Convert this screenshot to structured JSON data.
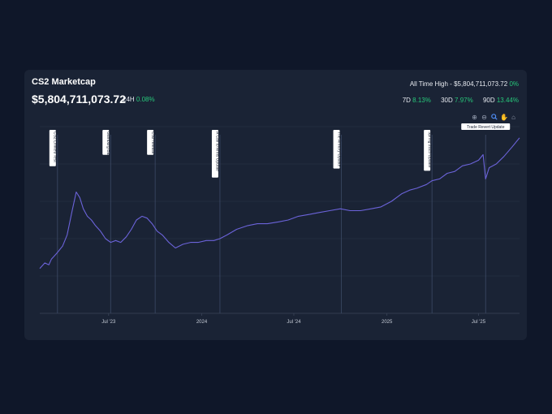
{
  "header": {
    "title": "CS2 Marketcap",
    "value": "$5,804,711,073.72",
    "change_24h_label": "24H",
    "change_24h": "0.08%",
    "ath_label": "All Time High - $5,804,711,073.72",
    "ath_change": "0%",
    "periods": [
      {
        "label": "7D",
        "value": "8.13%"
      },
      {
        "label": "30D",
        "value": "7.97%"
      },
      {
        "label": "90D",
        "value": "13.44%"
      }
    ]
  },
  "toolbar": {
    "icons": [
      "zoom-in-icon",
      "zoom-out-icon",
      "magnifier-icon",
      "pan-hand-icon",
      "home-icon"
    ]
  },
  "colors": {
    "background": "#0f1729",
    "card": "#1a2335",
    "line": "#6b63d9",
    "positive": "#27c77a",
    "grid": "#2c3648"
  },
  "chart_data": {
    "type": "line",
    "title": "",
    "xlabel": "",
    "ylabel": "",
    "x_ticks": [
      "Jul '23",
      "2024",
      "Jul '24",
      "2025",
      "Jul '25"
    ],
    "x_range": [
      "2023-02-15",
      "2025-09-20"
    ],
    "y_range": [
      0,
      1
    ],
    "grid": true,
    "annotations": [
      {
        "label": "CS2 Limited Test",
        "date": "2023-03-22"
      },
      {
        "label": "Gamburg Ban",
        "date": "2023-07-05"
      },
      {
        "label": "CS2 release",
        "date": "2023-10-01"
      },
      {
        "label": "A Call to Arms Update",
        "date": "2024-02-06"
      },
      {
        "label": "The Armory Update",
        "date": "2024-10-03"
      },
      {
        "label": "Spring 2025 Update",
        "date": "2025-03-31"
      },
      {
        "label": "Trade Revert Update",
        "date": "2025-07-15"
      }
    ],
    "series": [
      {
        "x": [
          "2023-02-15",
          "2023-02-25",
          "2023-03-05",
          "2023-03-10",
          "2023-03-20",
          "2023-04-01",
          "2023-04-10",
          "2023-04-20",
          "2023-04-28",
          "2023-05-05",
          "2023-05-12",
          "2023-05-20",
          "2023-05-28",
          "2023-06-05",
          "2023-06-15",
          "2023-06-25",
          "2023-07-05",
          "2023-07-15",
          "2023-07-25",
          "2023-08-05",
          "2023-08-15",
          "2023-08-25",
          "2023-09-05",
          "2023-09-15",
          "2023-09-25",
          "2023-10-05",
          "2023-10-15",
          "2023-10-28",
          "2023-11-10",
          "2023-11-25",
          "2023-12-10",
          "2023-12-25",
          "2024-01-10",
          "2024-01-25",
          "2024-02-06",
          "2024-02-20",
          "2024-03-10",
          "2024-04-01",
          "2024-04-20",
          "2024-05-10",
          "2024-06-01",
          "2024-06-20",
          "2024-07-10",
          "2024-08-01",
          "2024-08-20",
          "2024-09-10",
          "2024-10-01",
          "2024-10-20",
          "2024-11-10",
          "2024-12-01",
          "2024-12-20",
          "2025-01-10",
          "2025-01-30",
          "2025-02-15",
          "2025-03-01",
          "2025-03-20",
          "2025-03-31",
          "2025-04-15",
          "2025-04-30",
          "2025-05-15",
          "2025-05-30",
          "2025-06-15",
          "2025-07-01",
          "2025-07-10",
          "2025-07-15",
          "2025-07-22",
          "2025-08-05",
          "2025-08-20",
          "2025-09-05",
          "2025-09-20"
        ],
        "y": [
          0.24,
          0.27,
          0.26,
          0.29,
          0.32,
          0.36,
          0.42,
          0.55,
          0.65,
          0.62,
          0.56,
          0.52,
          0.5,
          0.47,
          0.44,
          0.4,
          0.38,
          0.39,
          0.38,
          0.41,
          0.45,
          0.5,
          0.52,
          0.51,
          0.48,
          0.44,
          0.42,
          0.38,
          0.35,
          0.37,
          0.38,
          0.38,
          0.39,
          0.39,
          0.4,
          0.42,
          0.45,
          0.47,
          0.48,
          0.48,
          0.49,
          0.5,
          0.52,
          0.53,
          0.54,
          0.55,
          0.56,
          0.55,
          0.55,
          0.56,
          0.57,
          0.6,
          0.64,
          0.66,
          0.67,
          0.69,
          0.71,
          0.72,
          0.75,
          0.76,
          0.79,
          0.8,
          0.82,
          0.85,
          0.72,
          0.78,
          0.8,
          0.84,
          0.89,
          0.94
        ]
      }
    ]
  }
}
